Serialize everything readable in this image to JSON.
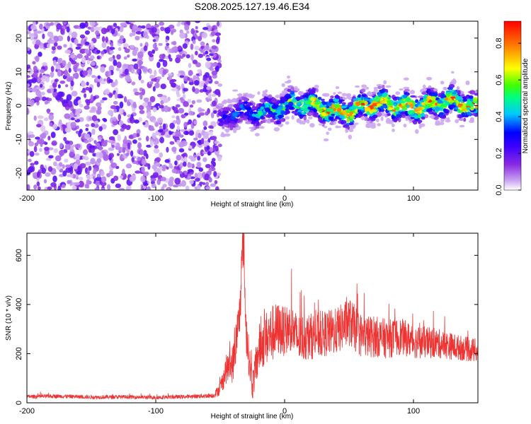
{
  "chart_data": [
    {
      "type": "heatmap",
      "title": "S208.2025.127.19.46.E34",
      "xlabel": "Height of straight line (km)",
      "ylabel": "Frequency (Hz)",
      "xlim": [
        -200,
        150
      ],
      "ylim": [
        -25,
        25
      ],
      "x_ticks": [
        -200,
        -100,
        0,
        100
      ],
      "y_ticks": [
        -20,
        -10,
        0,
        10,
        20
      ],
      "grid": false,
      "colorbar": {
        "label": "Normalized spectral amplitude",
        "range": [
          0,
          0.92
        ],
        "ticks": [
          0.0,
          0.2,
          0.4,
          0.6,
          0.8
        ],
        "colormap": [
          "#ffffff",
          "#c7a0f0",
          "#8a2be2",
          "#3a00ff",
          "#0000ff",
          "#00c8ff",
          "#00ff80",
          "#40ff00",
          "#ffff00",
          "#ff8000",
          "#ff0000"
        ]
      },
      "regions": [
        {
          "x_range": [
            -200,
            -50
          ],
          "freq_range": [
            -25,
            25
          ],
          "amplitude_range": [
            0.0,
            0.2
          ],
          "description_in_values": "broadband"
        },
        {
          "x_range": [
            -50,
            150
          ],
          "freq_center": [
            [
              -50,
              -6
            ],
            [
              -40,
              -3
            ],
            [
              -20,
              -1
            ],
            [
              0,
              0
            ],
            [
              50,
              -1
            ],
            [
              100,
              0.5
            ],
            [
              150,
              0
            ]
          ],
          "freq_halfwidth": 2.5,
          "peak_amplitude": 0.9
        }
      ]
    },
    {
      "type": "line",
      "xlabel": "Height of straight line (km)",
      "ylabel": "SNR (10 * v/v)",
      "xlim": [
        -200,
        150
      ],
      "ylim": [
        0,
        690
      ],
      "x_ticks": [
        -200,
        -100,
        0,
        100
      ],
      "y_ticks": [
        0,
        200,
        400,
        600
      ],
      "grid": false,
      "color": "#ee3333",
      "series": [
        {
          "x": [
            -200,
            -175,
            -150,
            -125,
            -100,
            -75,
            -55,
            -50,
            -45,
            -40,
            -35,
            -32,
            -30,
            -28,
            -25,
            -22,
            -20,
            -15,
            -10,
            -5,
            0,
            5,
            10,
            20,
            30,
            40,
            50,
            60,
            70,
            80,
            90,
            100,
            110,
            120,
            130,
            140,
            150
          ],
          "y": [
            25,
            27,
            23,
            24,
            22,
            25,
            30,
            60,
            140,
            160,
            350,
            690,
            300,
            200,
            70,
            150,
            220,
            260,
            280,
            300,
            290,
            310,
            260,
            270,
            280,
            290,
            330,
            270,
            270,
            260,
            270,
            250,
            245,
            240,
            230,
            220,
            210
          ],
          "noise_amplitude": [
            8,
            8,
            8,
            8,
            8,
            8,
            10,
            30,
            60,
            80,
            100,
            120,
            90,
            80,
            60,
            80,
            100,
            110,
            120,
            110,
            100,
            100,
            100,
            95,
            95,
            95,
            100,
            90,
            85,
            80,
            75,
            70,
            65,
            60,
            55,
            50,
            50
          ]
        }
      ]
    }
  ]
}
